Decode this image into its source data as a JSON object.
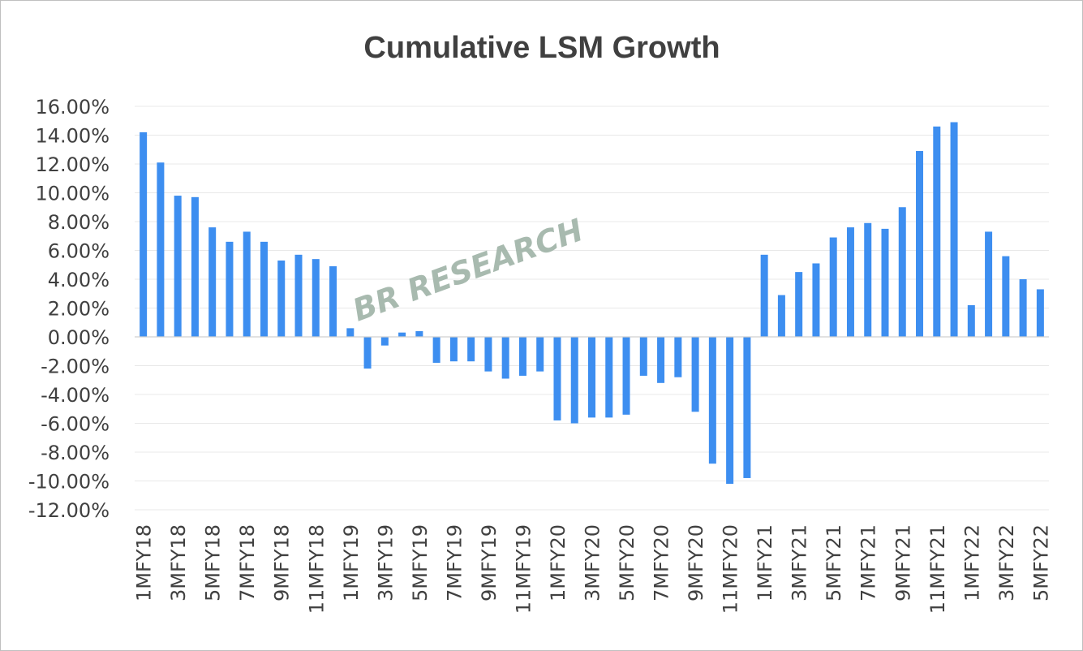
{
  "chart_data": {
    "type": "bar",
    "title": "Cumulative LSM Growth",
    "watermark": "BR RESEARCH",
    "xlabel": "",
    "ylabel": "",
    "ylim": [
      -12,
      16
    ],
    "yticks": [
      "16.00%",
      "14.00%",
      "12.00%",
      "10.00%",
      "8.00%",
      "6.00%",
      "4.00%",
      "2.00%",
      "0.00%",
      "-2.00%",
      "-4.00%",
      "-6.00%",
      "-8.00%",
      "-10.00%",
      "-12.00%"
    ],
    "grid": true,
    "bar_color": "#3d8ef0",
    "categories": [
      "1MFY18",
      "2MFY18",
      "3MFY18",
      "4MFY18",
      "5MFY18",
      "6MFY18",
      "7MFY18",
      "8MFY18",
      "9MFY18",
      "10MFY18",
      "11MFY18",
      "12MFY18",
      "1MFY19",
      "2MFY19",
      "3MFY19",
      "4MFY19",
      "5MFY19",
      "6MFY19",
      "7MFY19",
      "8MFY19",
      "9MFY19",
      "10MFY19",
      "11MFY19",
      "12MFY19",
      "1MFY20",
      "2MFY20",
      "3MFY20",
      "4MFY20",
      "5MFY20",
      "6MFY20",
      "7MFY20",
      "8MFY20",
      "9MFY20",
      "10MFY20",
      "11MFY20",
      "12MFY20",
      "1MFY21",
      "2MFY21",
      "3MFY21",
      "4MFY21",
      "5MFY21",
      "6MFY21",
      "7MFY21",
      "8MFY21",
      "9MFY21",
      "10MFY21",
      "11MFY21",
      "12MFY21",
      "1MFY22",
      "2MFY22",
      "3MFY22",
      "4MFY22",
      "5MFY22"
    ],
    "visible_xtick_labels": [
      "1MFY18",
      "3MFY18",
      "5MFY18",
      "7MFY18",
      "9MFY18",
      "11MFY18",
      "1MFY19",
      "3MFY19",
      "5MFY19",
      "7MFY19",
      "9MFY19",
      "11MFY19",
      "1MFY20",
      "3MFY20",
      "5MFY20",
      "7MFY20",
      "9MFY20",
      "11MFY20",
      "1MFY21",
      "3MFY21",
      "5MFY21",
      "7MFY21",
      "9MFY21",
      "11MFY21",
      "1MFY22",
      "3MFY22",
      "5MFY22"
    ],
    "values": [
      14.2,
      12.1,
      9.8,
      9.7,
      7.6,
      6.6,
      7.3,
      6.6,
      5.3,
      5.7,
      5.4,
      4.9,
      0.6,
      -2.2,
      -0.6,
      0.3,
      0.4,
      -1.8,
      -1.7,
      -1.7,
      -2.4,
      -2.9,
      -2.7,
      -2.4,
      -5.8,
      -6.0,
      -5.6,
      -5.6,
      -5.4,
      -2.7,
      -3.2,
      -2.8,
      -5.2,
      -8.8,
      -10.2,
      -9.8,
      5.7,
      2.9,
      4.5,
      5.1,
      6.9,
      7.6,
      7.9,
      7.5,
      9.0,
      12.9,
      14.6,
      14.9,
      2.2,
      7.3,
      5.6,
      4.0,
      3.3
    ]
  }
}
